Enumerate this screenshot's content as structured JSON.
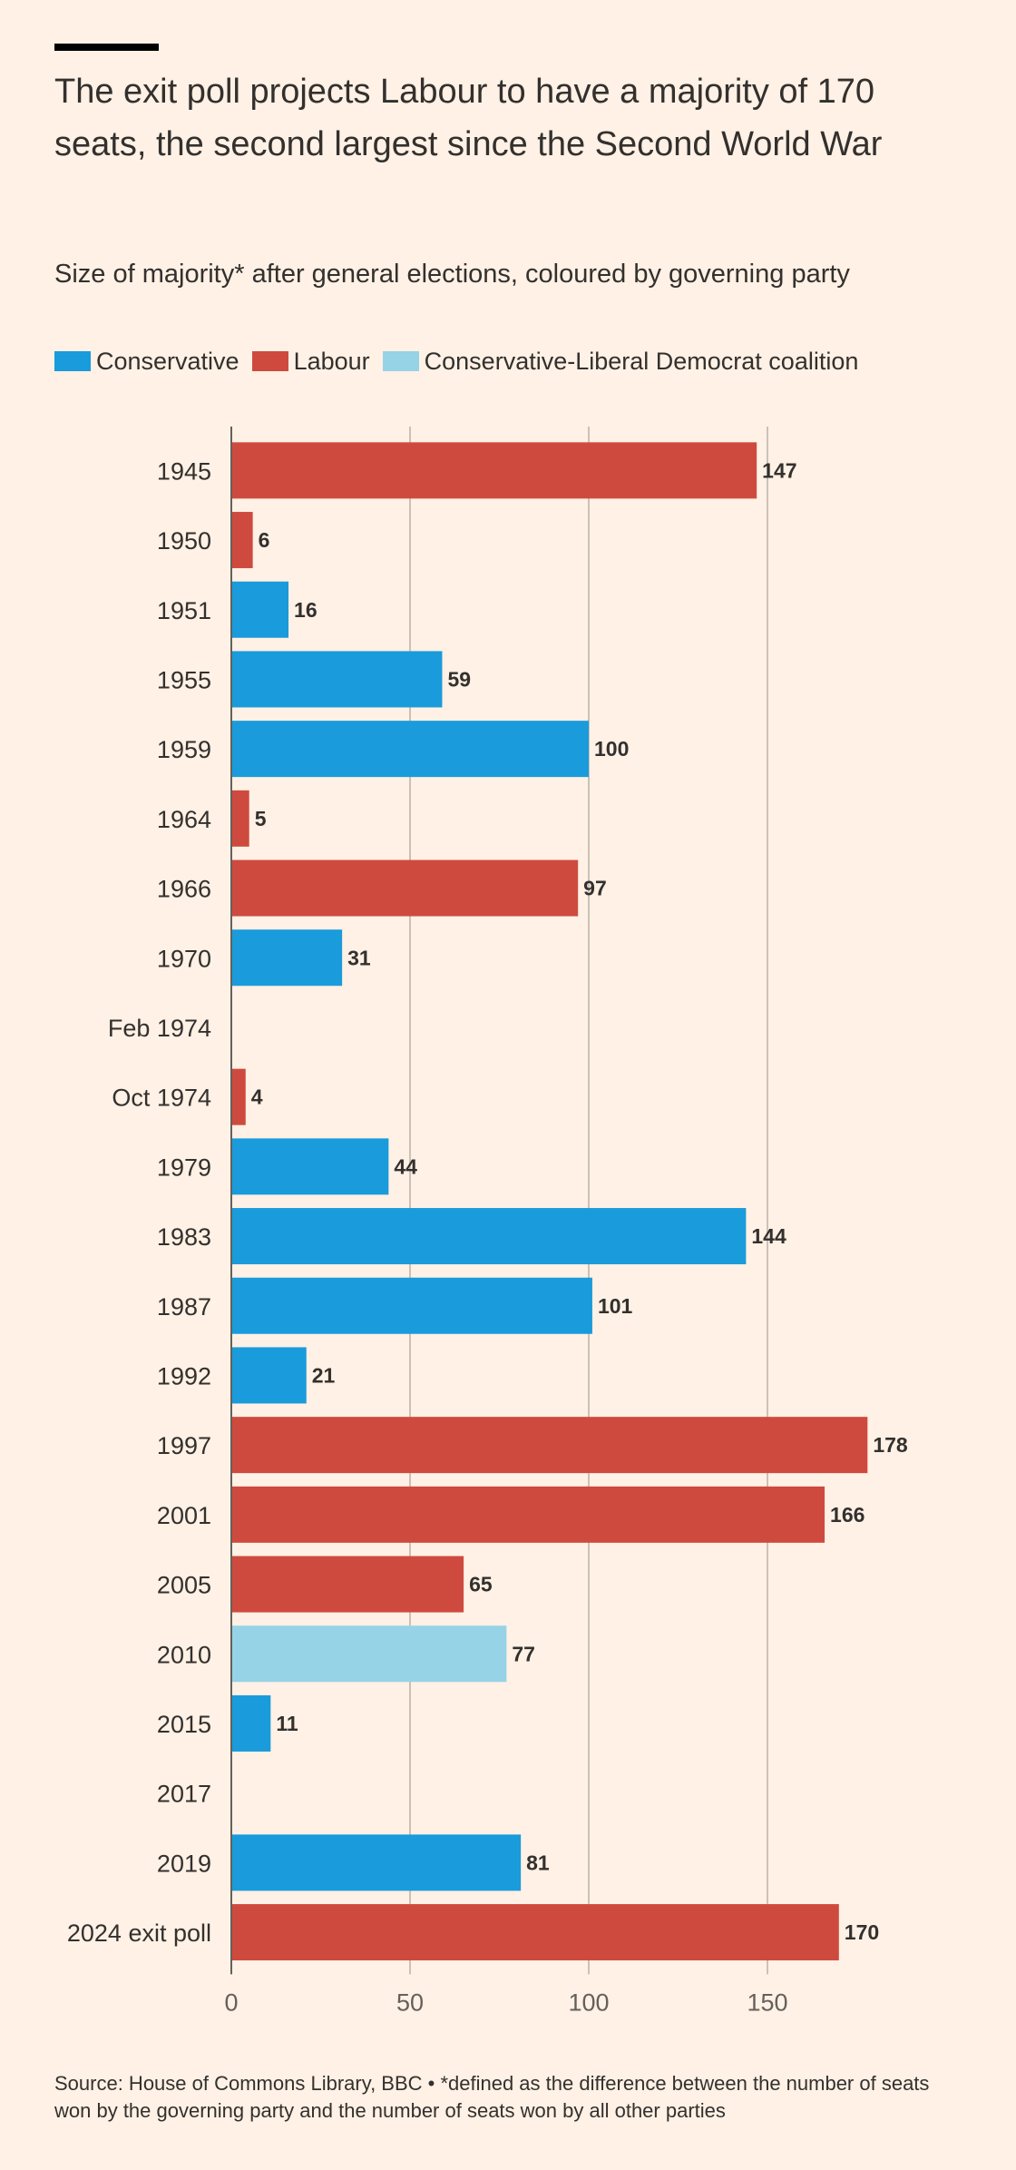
{
  "title": "The exit poll projects Labour to have a majority of 170 seats, the second largest since the Second World War",
  "subtitle": "Size of majority* after general elections, coloured by governing party",
  "legend": [
    {
      "label": "Conservative",
      "color": "#1A9BDB"
    },
    {
      "label": "Labour",
      "color": "#CF4A3E"
    },
    {
      "label": "Conservative-Liberal Democrat coalition",
      "color": "#96D3E6"
    }
  ],
  "source": "Source: House of Commons Library, BBC • *defined as the difference between the number of seats won by the governing party and the number of seats won by all other parties",
  "colors": {
    "Conservative": "#1A9BDB",
    "Labour": "#CF4A3E",
    "Conservative-Liberal Democrat coalition": "#96D3E6",
    "grid": "#CCC1B7",
    "axis": "#66605C"
  },
  "chart_data": {
    "type": "bar",
    "orientation": "horizontal",
    "categories": [
      "1945",
      "1950",
      "1951",
      "1955",
      "1959",
      "1964",
      "1966",
      "1970",
      "Feb 1974",
      "Oct 1974",
      "1979",
      "1983",
      "1987",
      "1992",
      "1997",
      "2001",
      "2005",
      "2010",
      "2015",
      "2017",
      "2019",
      "2024 exit poll"
    ],
    "values": [
      147,
      6,
      16,
      59,
      100,
      5,
      97,
      31,
      null,
      4,
      44,
      144,
      101,
      21,
      178,
      166,
      65,
      77,
      11,
      null,
      81,
      170
    ],
    "party": [
      "Labour",
      "Labour",
      "Conservative",
      "Conservative",
      "Conservative",
      "Labour",
      "Labour",
      "Conservative",
      null,
      "Labour",
      "Conservative",
      "Conservative",
      "Conservative",
      "Conservative",
      "Labour",
      "Labour",
      "Labour",
      "Conservative-Liberal Democrat coalition",
      "Conservative",
      null,
      "Conservative",
      "Labour"
    ],
    "xlim": [
      0,
      180
    ],
    "xticks": [
      0,
      50,
      100,
      150
    ],
    "grid": true,
    "legend_position": "top"
  }
}
